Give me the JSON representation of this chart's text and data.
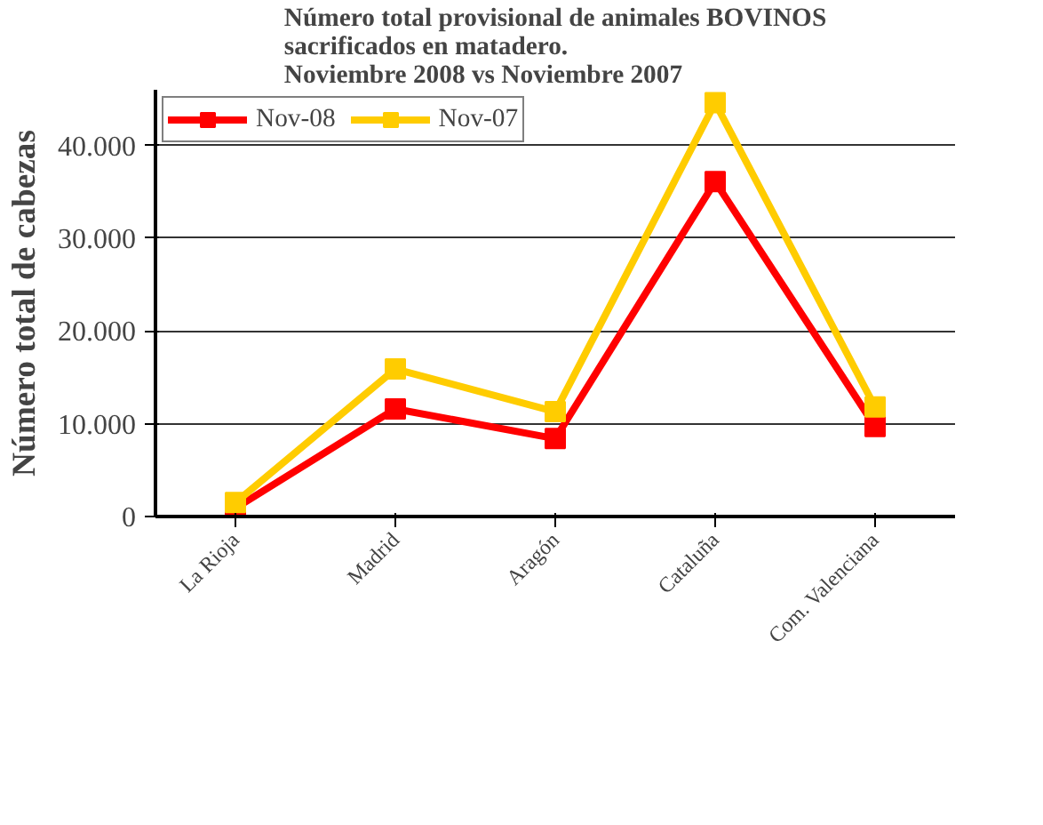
{
  "chart_data": {
    "type": "line",
    "title": "Número total provisional de animales BOVINOS\nsacrificados en matadero.\nNoviembre 2008 vs Noviembre 2007",
    "ylabel": "Número total de cabezas",
    "categories": [
      "La Rioja",
      "Madrid",
      "Aragón",
      "Cataluña",
      "Com. Valenciana"
    ],
    "series": [
      {
        "name": "Nov-08",
        "color": "#ff0000",
        "values": [
          900,
          11600,
          8400,
          36100,
          9700
        ]
      },
      {
        "name": "Nov-07",
        "color": "#ffcc00",
        "values": [
          1500,
          15900,
          11300,
          44600,
          11800
        ]
      }
    ],
    "ylim": [
      0,
      46000
    ],
    "yticks": [
      0,
      {
        "value": 10000,
        "label": "10.000"
      },
      {
        "value": 20000,
        "label": "20.000"
      },
      {
        "value": 30000,
        "label": "30.000"
      },
      {
        "value": 40000,
        "label": "40.000"
      }
    ],
    "grid": "y",
    "legend": "top left",
    "marker": "square",
    "line_style": "solid"
  }
}
